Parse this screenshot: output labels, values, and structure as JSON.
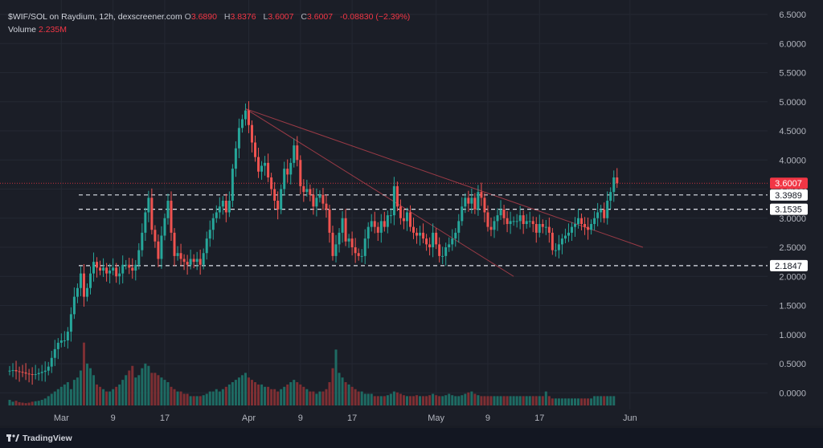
{
  "legend": {
    "symbol": "$WIF/SOL on Raydium, 12h, dexscreener.com",
    "open_key": "O",
    "open": "3.6890",
    "high_key": "H",
    "high": "3.8376",
    "low_key": "L",
    "low": "3.6007",
    "close_key": "C",
    "close": "3.6007",
    "change": "-0.08830 (−2.39%)",
    "volume_label": "Volume",
    "volume_value": "2.235M"
  },
  "brand": "TradingView",
  "chart_data": {
    "type": "candlestick",
    "title": "$WIF/SOL on Raydium, 12h, dexscreener.com",
    "y_ticks": [
      "6.5000",
      "6.0000",
      "5.5000",
      "5.0000",
      "4.5000",
      "4.0000",
      "3.5000",
      "3.0000",
      "2.5000",
      "2.0000",
      "1.5000",
      "1.0000",
      "0.5000",
      "0.0000"
    ],
    "ylim": [
      -0.25,
      6.6
    ],
    "x_ticks": [
      {
        "label": "Mar",
        "index": 16
      },
      {
        "label": "9",
        "index": 32
      },
      {
        "label": "17",
        "index": 48
      },
      {
        "label": "Apr",
        "index": 74
      },
      {
        "label": "9",
        "index": 90
      },
      {
        "label": "17",
        "index": 106
      },
      {
        "label": "May",
        "index": 132
      },
      {
        "label": "9",
        "index": 148
      },
      {
        "label": "17",
        "index": 164
      },
      {
        "label": "Jun",
        "index": 192
      }
    ],
    "price_labels": [
      {
        "value": 3.6007,
        "label": "3.6007",
        "kind": "last"
      },
      {
        "value": 3.3989,
        "label": "3.3989",
        "kind": "level"
      },
      {
        "value": 3.1535,
        "label": "3.1535",
        "kind": "level"
      },
      {
        "value": 2.1847,
        "label": "2.1847",
        "kind": "level"
      }
    ],
    "trendlines": [
      {
        "from": [
          73,
          4.88
        ],
        "to": [
          196,
          2.5
        ]
      },
      {
        "from": [
          73,
          4.88
        ],
        "to": [
          156,
          2.0
        ]
      }
    ],
    "close_line_value": 3.6007,
    "up_color": "#26a69a",
    "down_color": "#ef5350",
    "closes": [
      0.38,
      0.39,
      0.37,
      0.36,
      0.35,
      0.33,
      0.32,
      0.31,
      0.32,
      0.34,
      0.36,
      0.38,
      0.45,
      0.6,
      0.75,
      0.86,
      0.9,
      0.9,
      1.05,
      1.35,
      1.65,
      1.8,
      2.05,
      1.65,
      1.8,
      2.05,
      2.25,
      2.15,
      2.1,
      2.15,
      2.05,
      2.1,
      2.15,
      2.0,
      2.05,
      2.2,
      2.2,
      2.15,
      2.1,
      2.2,
      2.45,
      2.75,
      3.1,
      3.35,
      2.8,
      2.6,
      2.3,
      2.7,
      3.0,
      3.3,
      2.75,
      2.35,
      2.4,
      2.3,
      2.25,
      2.2,
      2.3,
      2.25,
      2.3,
      2.2,
      2.4,
      2.65,
      2.8,
      3.0,
      3.1,
      3.2,
      3.3,
      3.1,
      3.3,
      3.85,
      4.2,
      4.55,
      4.7,
      4.85,
      4.6,
      4.3,
      4.05,
      3.8,
      3.9,
      3.95,
      3.7,
      3.5,
      3.3,
      3.15,
      3.5,
      3.85,
      3.75,
      3.95,
      4.25,
      4.0,
      3.55,
      3.45,
      3.5,
      3.4,
      3.2,
      3.35,
      3.4,
      3.25,
      3.15,
      2.75,
      2.35,
      2.55,
      2.75,
      3.0,
      2.6,
      2.65,
      2.5,
      2.4,
      2.35,
      2.35,
      2.65,
      2.85,
      2.95,
      2.85,
      2.75,
      2.95,
      2.85,
      3.05,
      3.05,
      3.55,
      3.2,
      3.0,
      2.95,
      3.1,
      2.85,
      2.75,
      2.7,
      2.75,
      2.65,
      2.55,
      2.5,
      2.75,
      2.55,
      2.35,
      2.35,
      2.5,
      2.55,
      2.65,
      2.75,
      2.95,
      3.2,
      3.35,
      3.25,
      3.35,
      3.15,
      3.45,
      3.35,
      3.1,
      2.85,
      2.8,
      2.95,
      3.05,
      3.15,
      3.0,
      2.9,
      2.95,
      2.95,
      2.95,
      3.05,
      2.9,
      2.95,
      2.95,
      2.9,
      2.75,
      2.9,
      2.85,
      2.85,
      2.75,
      2.45,
      2.45,
      2.55,
      2.65,
      2.7,
      2.75,
      2.85,
      2.9,
      3.0,
      2.9,
      2.85,
      2.8,
      2.9,
      3.0,
      3.1,
      3.15,
      3.0,
      3.3,
      3.45,
      3.7,
      3.6
    ],
    "volumes": [
      0.12,
      0.08,
      0.1,
      0.07,
      0.06,
      0.05,
      0.06,
      0.08,
      0.09,
      0.1,
      0.12,
      0.15,
      0.2,
      0.25,
      0.3,
      0.35,
      0.4,
      0.45,
      0.5,
      0.35,
      0.55,
      0.6,
      0.75,
      1.35,
      0.9,
      0.8,
      0.65,
      0.45,
      0.4,
      0.35,
      0.3,
      0.3,
      0.35,
      0.4,
      0.45,
      0.55,
      0.65,
      0.75,
      0.85,
      0.6,
      0.65,
      0.8,
      0.9,
      0.85,
      0.7,
      0.7,
      0.65,
      0.6,
      0.55,
      0.5,
      0.4,
      0.35,
      0.3,
      0.3,
      0.25,
      0.25,
      0.2,
      0.2,
      0.2,
      0.2,
      0.22,
      0.25,
      0.3,
      0.3,
      0.35,
      0.3,
      0.35,
      0.4,
      0.45,
      0.5,
      0.55,
      0.6,
      0.65,
      0.7,
      0.6,
      0.55,
      0.5,
      0.45,
      0.45,
      0.4,
      0.4,
      0.35,
      0.35,
      0.3,
      0.35,
      0.4,
      0.45,
      0.5,
      0.55,
      0.5,
      0.45,
      0.4,
      0.35,
      0.3,
      0.3,
      0.25,
      0.3,
      0.3,
      0.35,
      0.5,
      0.8,
      1.2,
      0.7,
      0.6,
      0.5,
      0.45,
      0.4,
      0.35,
      0.3,
      0.3,
      0.25,
      0.25,
      0.25,
      0.2,
      0.2,
      0.2,
      0.2,
      0.22,
      0.25,
      0.3,
      0.28,
      0.25,
      0.22,
      0.2,
      0.2,
      0.2,
      0.22,
      0.2,
      0.2,
      0.2,
      0.22,
      0.25,
      0.22,
      0.2,
      0.2,
      0.22,
      0.25,
      0.22,
      0.2,
      0.2,
      0.22,
      0.25,
      0.28,
      0.3,
      0.25,
      0.22,
      0.2,
      0.2,
      0.2,
      0.2,
      0.2,
      0.2,
      0.2,
      0.2,
      0.2,
      0.2,
      0.2,
      0.2,
      0.2,
      0.2,
      0.2,
      0.2,
      0.2,
      0.2,
      0.2,
      0.2,
      0.3,
      0.2,
      0.15,
      0.15,
      0.15,
      0.15,
      0.15,
      0.15,
      0.15,
      0.15,
      0.15,
      0.15,
      0.15,
      0.15,
      0.15,
      0.2,
      0.2,
      0.2,
      0.2,
      0.2,
      0.2,
      0.2
    ]
  }
}
